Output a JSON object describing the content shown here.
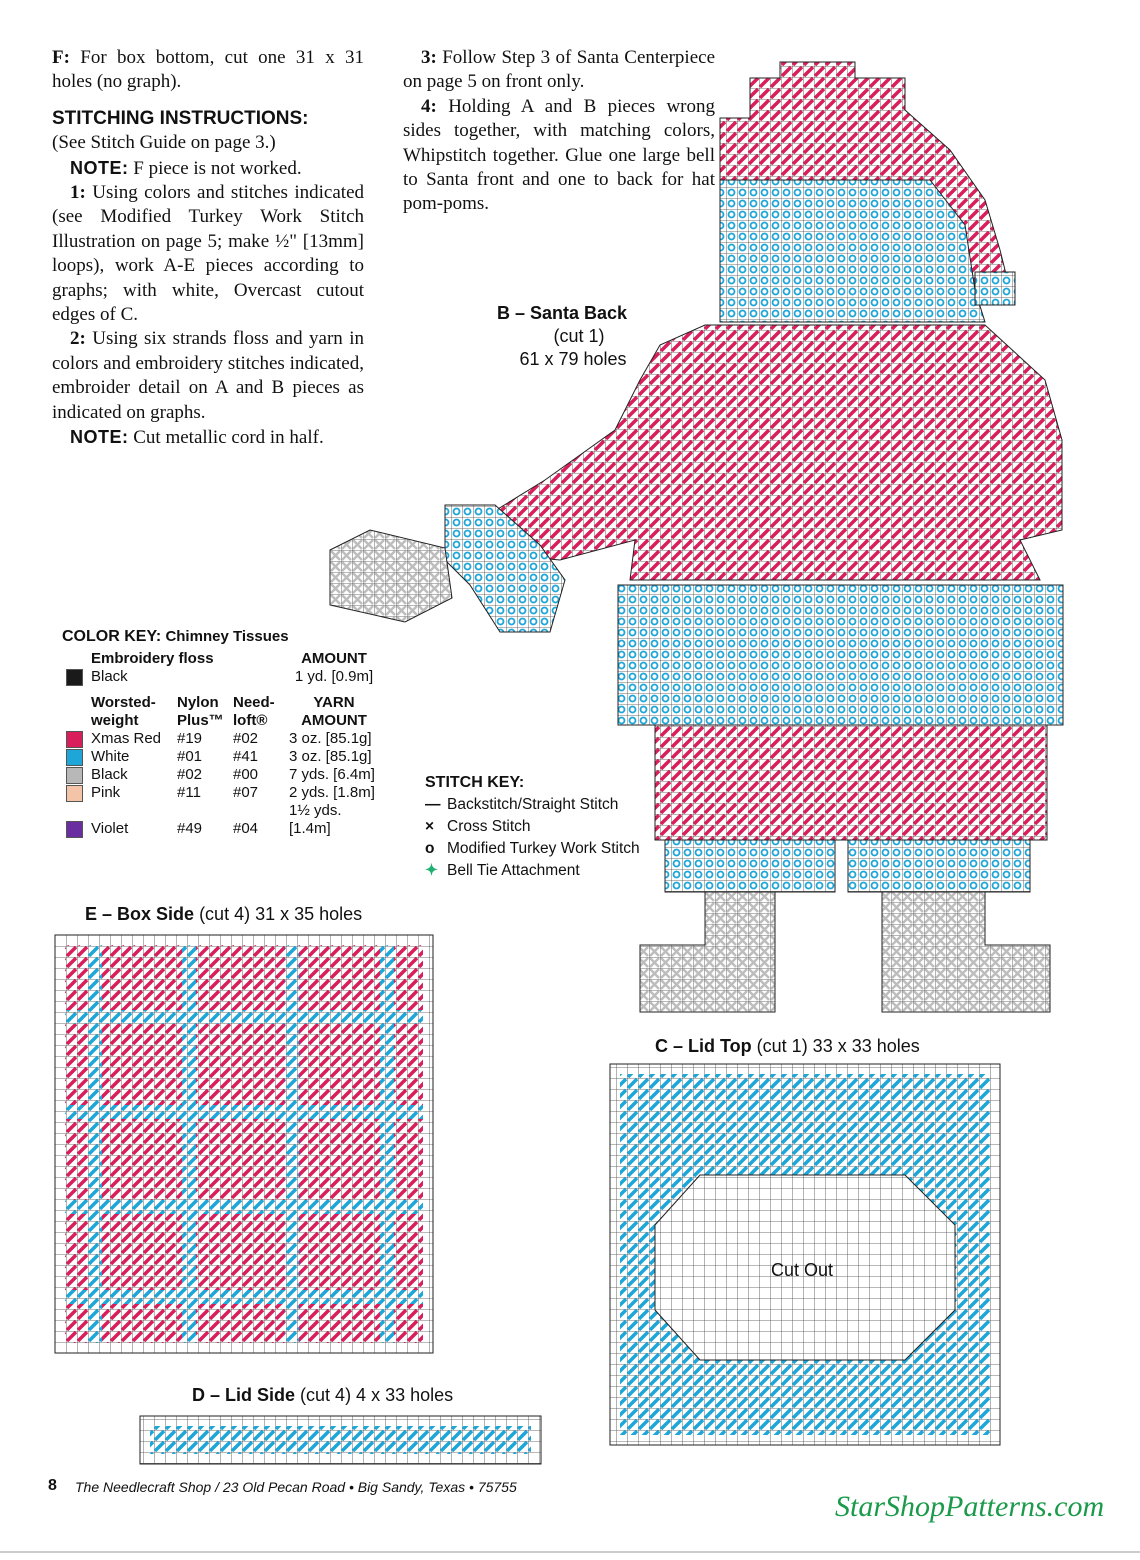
{
  "left_column": {
    "p_f": {
      "label": "F:",
      "text": "For box bottom, cut one 31 x 31 holes (no graph)."
    },
    "heading": "STITCHING INSTRUCTIONS:",
    "guide": "(See Stitch Guide on page 3.)",
    "note1": {
      "label": "NOTE:",
      "text": "F piece is not worked."
    },
    "step1": {
      "label": "1:",
      "text": "Using colors and stitches indicated (see Modified Turkey Work Stitch Illustration on page 5; make ½\" [13mm] loops), work A-E pieces according to graphs; with white, Overcast cutout edges of C."
    },
    "step2": {
      "label": "2:",
      "text": "Using six strands floss and yarn in colors and embroidery stitches indicated, embroider detail on A and B pieces as indicated on graphs."
    },
    "note2": {
      "label": "NOTE:",
      "text": "Cut metallic cord in half."
    }
  },
  "right_column": {
    "step3": {
      "label": "3:",
      "text": "Follow Step 3 of Santa Centerpiece on page 5 on front only."
    },
    "step4": {
      "label": "4:",
      "text": "Holding A and B pieces wrong sides together, with matching colors, Whipstitch together. Glue one large bell to Santa front and one to back for hat pom-poms."
    }
  },
  "color_key": {
    "title": "COLOR KEY:",
    "subtitle": "Chimney Tissues",
    "floss_header": [
      "Embroidery floss",
      "AMOUNT"
    ],
    "floss_rows": [
      {
        "name": "Black",
        "amount": "1 yd. [0.9m]",
        "color": "#1a1a1a"
      }
    ],
    "yarn_header": [
      "Worsted-weight",
      "Nylon Plus™",
      "Need-loft®",
      "YARN AMOUNT"
    ],
    "yarn_rows": [
      {
        "name": "Xmas Red",
        "nylon": "#19",
        "needloft": "#02",
        "amount": "3 oz. [85.1g]",
        "color": "#d81e5b"
      },
      {
        "name": "White",
        "nylon": "#01",
        "needloft": "#41",
        "amount": "3 oz. [85.1g]",
        "color": "#1ea6d8"
      },
      {
        "name": "Black",
        "nylon": "#02",
        "needloft": "#00",
        "amount": "7 yds. [6.4m]",
        "color": "#b8b8b8"
      },
      {
        "name": "Pink",
        "nylon": "#11",
        "needloft": "#07",
        "amount": "2 yds. [1.8m]",
        "color": "#f4c4a8"
      },
      {
        "name": "Violet",
        "nylon": "#49",
        "needloft": "#04",
        "amount": "1½ yds. [1.4m]",
        "color": "#6a2ea0"
      }
    ]
  },
  "stitch_key": {
    "title": "STITCH KEY:",
    "items": [
      "Backstitch/Straight Stitch",
      "Cross Stitch",
      "Modified Turkey Work Stitch",
      "Bell Tie Attachment"
    ]
  },
  "pieces": {
    "b": {
      "title": "B – Santa Back",
      "cut": "(cut 1)",
      "size": "61 x 79 holes"
    },
    "e": {
      "title": "E – Box Side",
      "cut": "(cut 4) 31 x 35 holes"
    },
    "c": {
      "title": "C – Lid Top",
      "cut": "(cut 1) 33 x 33 holes",
      "cutout": "Cut Out"
    },
    "d": {
      "title": "D – Lid Side",
      "cut": "(cut 4) 4 x 33 holes"
    }
  },
  "footer": {
    "page": "8",
    "address": "The Needlecraft Shop / 23 Old Pecan Road • Big Sandy, Texas • 75755",
    "site": "StarShopPatterns.com"
  }
}
